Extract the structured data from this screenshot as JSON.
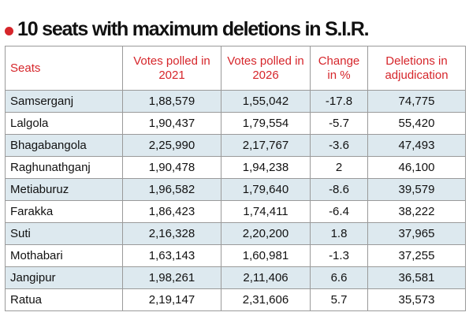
{
  "header": {
    "title": "10 seats with maximum deletions in S.I.R."
  },
  "table": {
    "columns": [
      "Seats",
      "Votes polled in 2021",
      "Votes polled in 2026",
      "Change in %",
      "Deletions in adjudication"
    ],
    "rows": [
      [
        "Samserganj",
        "1,88,579",
        "1,55,042",
        "-17.8",
        "74,775"
      ],
      [
        "Lalgola",
        "1,90,437",
        "1,79,554",
        "-5.7",
        "55,420"
      ],
      [
        "Bhagabangola",
        "2,25,990",
        "2,17,767",
        "-3.6",
        "47,493"
      ],
      [
        "Raghunathganj",
        "1,90,478",
        "1,94,238",
        "2",
        "46,100"
      ],
      [
        "Metiaburuz",
        "1,96,582",
        "1,79,640",
        "-8.6",
        "39,579"
      ],
      [
        "Farakka",
        "1,86,423",
        "1,74,411",
        "-6.4",
        "38,222"
      ],
      [
        "Suti",
        "2,16,328",
        "2,20,200",
        "1.8",
        "37,965"
      ],
      [
        "Mothabari",
        "1,63,143",
        "1,60,981",
        "-1.3",
        "37,255"
      ],
      [
        "Jangipur",
        "1,98,261",
        "2,11,406",
        "6.6",
        "36,581"
      ],
      [
        "Ratua",
        "2,19,147",
        "2,31,606",
        "5.7",
        "35,573"
      ]
    ]
  }
}
